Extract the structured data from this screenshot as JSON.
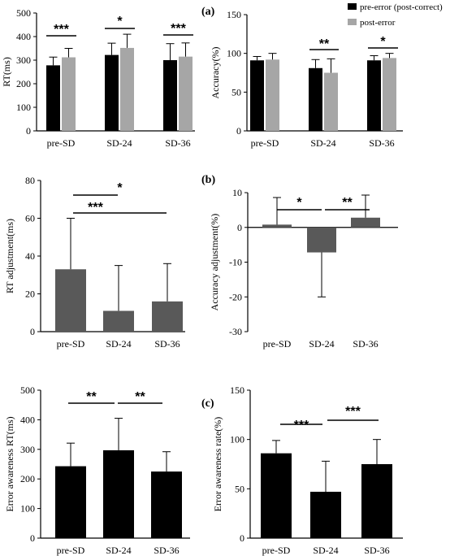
{
  "chart_data": [
    {
      "type": "bar",
      "panel": "",
      "categories": [
        "pre-SD",
        "SD-24",
        "SD-36"
      ],
      "series": [
        {
          "name": "pre-error (post-correct)",
          "color": "#000000",
          "values": [
            278,
            322,
            300
          ],
          "errors": [
            35,
            50,
            70
          ]
        },
        {
          "name": "post-error",
          "color": "#a6a6a6",
          "values": [
            312,
            352,
            315
          ],
          "errors": [
            38,
            58,
            58
          ]
        }
      ],
      "ylabel": "RT(ms)",
      "ylim": [
        0,
        500
      ],
      "yticks": [
        "0",
        "100",
        "200",
        "300",
        "400",
        "500"
      ],
      "sig": [
        "***",
        "*",
        "***"
      ]
    },
    {
      "type": "bar",
      "panel": "(a)",
      "categories": [
        "pre-SD",
        "SD-24",
        "SD-36"
      ],
      "series": [
        {
          "name": "pre-error (post-correct)",
          "color": "#000000",
          "values": [
            91,
            81,
            91
          ],
          "errors": [
            5,
            11,
            6
          ]
        },
        {
          "name": "post-error",
          "color": "#a6a6a6",
          "values": [
            92,
            75,
            94
          ],
          "errors": [
            8,
            18,
            6
          ]
        }
      ],
      "ylabel": "Accuracy(%)",
      "ylim": [
        0,
        150
      ],
      "yticks": [
        "0",
        "50",
        "100",
        "150"
      ],
      "sig": [
        "",
        "**",
        "*"
      ],
      "legend_position": "top-right"
    },
    {
      "type": "bar",
      "panel": "",
      "categories": [
        "pre-SD",
        "SD-24",
        "SD-36"
      ],
      "values": [
        33,
        11,
        16
      ],
      "errors": [
        27,
        24,
        20
      ],
      "color": "#595959",
      "ylabel": "RT adjustment(ms)",
      "ylim": [
        0,
        80
      ],
      "yticks": [
        "0",
        "20",
        "40",
        "60",
        "80"
      ],
      "sig": [
        "***",
        "*"
      ]
    },
    {
      "type": "bar",
      "panel": "(b)",
      "categories": [
        "pre-SD",
        "SD-24",
        "SD-36"
      ],
      "values": [
        0.8,
        -7.2,
        2.8
      ],
      "errors": [
        7.8,
        12.8,
        6.5
      ],
      "color": "#595959",
      "ylabel": "Accuracy adjustment(%)",
      "ylim": [
        -30,
        10
      ],
      "yticks": [
        "-30",
        "-20",
        "-10",
        "0",
        "10"
      ],
      "sig": [
        "*",
        "**"
      ]
    },
    {
      "type": "bar",
      "panel": "",
      "categories": [
        "pre-SD",
        "SD-24",
        "SD-36"
      ],
      "values": [
        243,
        297,
        225
      ],
      "errors": [
        78,
        108,
        67
      ],
      "color": "#000000",
      "ylabel": "Error awareness RT(ms)",
      "ylim": [
        0,
        500
      ],
      "yticks": [
        "0",
        "100",
        "200",
        "300",
        "400",
        "500"
      ],
      "sig": [
        "**",
        "**"
      ]
    },
    {
      "type": "bar",
      "panel": "(c)",
      "categories": [
        "pre-SD",
        "SD-24",
        "SD-36"
      ],
      "values": [
        86,
        47,
        75
      ],
      "errors": [
        13,
        31,
        25
      ],
      "color": "#000000",
      "ylabel": "Error awareness rate(%)",
      "ylim": [
        0,
        150
      ],
      "yticks": [
        "0",
        "50",
        "100",
        "150"
      ],
      "sig": [
        "***",
        "***"
      ]
    }
  ]
}
